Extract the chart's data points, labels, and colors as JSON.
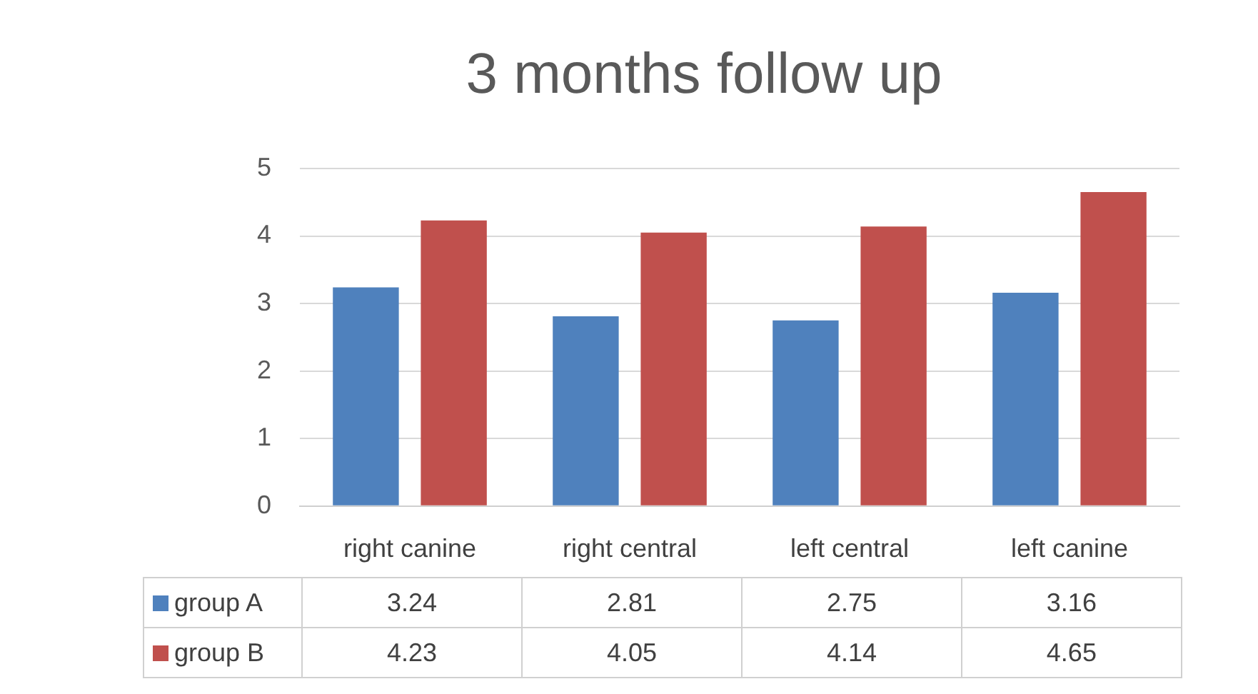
{
  "chart_data": {
    "type": "bar",
    "title": "3 months follow up",
    "categories": [
      "right canine",
      "right central",
      "left central",
      "left canine"
    ],
    "series": [
      {
        "name": "group A",
        "color": "#4f81bd",
        "values": [
          3.24,
          2.81,
          2.75,
          3.16
        ]
      },
      {
        "name": "group B",
        "color": "#c0504d",
        "values": [
          4.23,
          4.05,
          4.14,
          4.65
        ]
      }
    ],
    "ylim": [
      0,
      5
    ],
    "yticks": [
      0,
      1,
      2,
      3,
      4,
      5
    ],
    "grid": "y",
    "data_labels": true,
    "legend": "bottom"
  }
}
